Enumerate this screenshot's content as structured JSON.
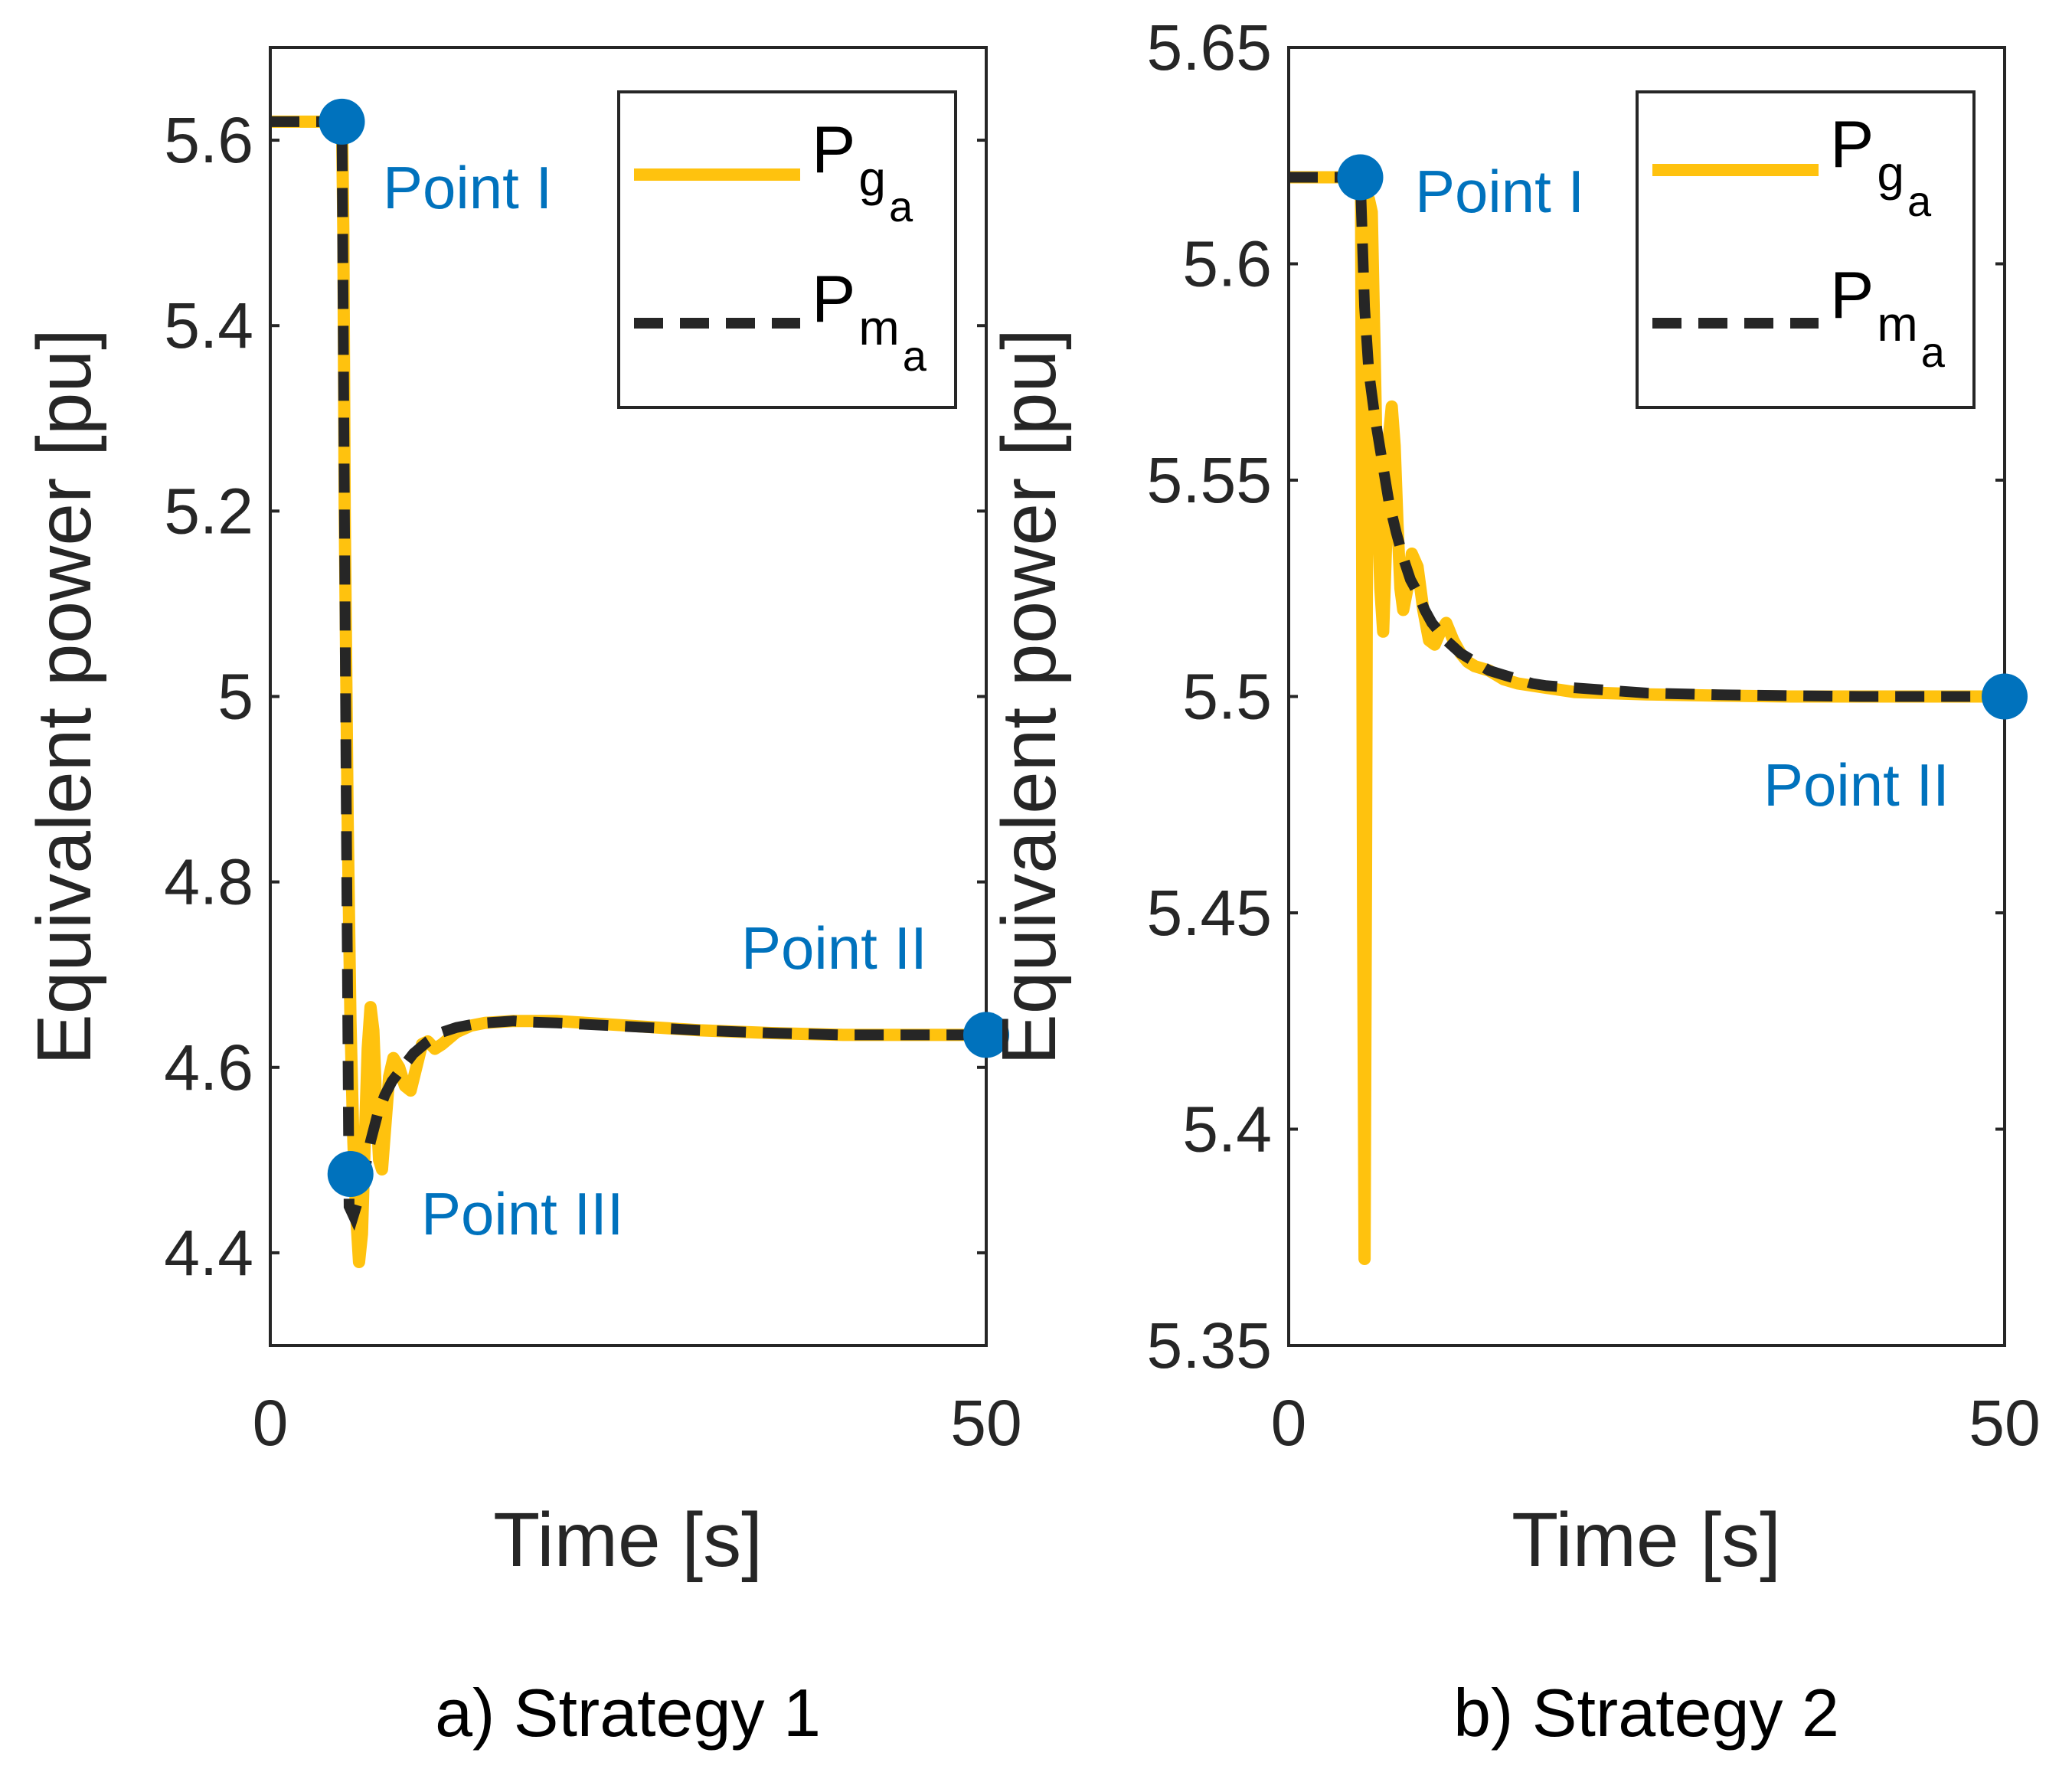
{
  "chart_data": [
    {
      "type": "line",
      "caption": "a) Strategy 1",
      "xlabel": "Time [s]",
      "ylabel": "Equivalent power [pu]",
      "xlim": [
        0,
        50
      ],
      "ylim": [
        4.3,
        5.7
      ],
      "xticks": [
        0,
        50
      ],
      "xtick_labels": [
        "0",
        "50"
      ],
      "yticks": [
        4.4,
        4.6,
        4.8,
        5.0,
        5.2,
        5.4,
        5.6
      ],
      "ytick_labels": [
        "4.4",
        "4.6",
        "4.8",
        "5",
        "5.2",
        "5.4",
        "5.6"
      ],
      "legend_position": "top-right",
      "series": [
        {
          "name": "Pg_a",
          "label_main": "P",
          "label_sub": "g",
          "label_subsub": "a",
          "color": "#FFC20E",
          "style": "solid",
          "x": [
            0,
            5,
            5.02,
            5.1,
            5.2,
            5.4,
            5.6,
            5.8,
            6.0,
            6.2,
            6.4,
            6.6,
            6.8,
            7.0,
            7.2,
            7.4,
            7.6,
            7.8,
            8.0,
            8.3,
            8.6,
            9.0,
            9.4,
            9.8,
            10.2,
            10.6,
            11.0,
            11.5,
            12,
            13,
            14,
            15,
            17,
            20,
            25,
            30,
            35,
            40,
            45,
            50
          ],
          "y": [
            5.62,
            5.62,
            5.61,
            5.5,
            5.2,
            4.87,
            4.65,
            4.52,
            4.44,
            4.39,
            4.42,
            4.52,
            4.62,
            4.665,
            4.64,
            4.56,
            4.5,
            4.49,
            4.53,
            4.59,
            4.61,
            4.6,
            4.58,
            4.575,
            4.6,
            4.625,
            4.628,
            4.62,
            4.625,
            4.638,
            4.645,
            4.648,
            4.65,
            4.65,
            4.645,
            4.64,
            4.637,
            4.635,
            4.635,
            4.635
          ]
        },
        {
          "name": "Pm_a",
          "label_main": "P",
          "label_sub": "m",
          "label_subsub": "a",
          "color": "#262626",
          "style": "dashed",
          "x": [
            0,
            5,
            5.02,
            5.3,
            5.5,
            5.8,
            6.2,
            6.6,
            7.0,
            7.5,
            8.0,
            8.5,
            9.0,
            9.5,
            10,
            11,
            12,
            13,
            14,
            15,
            16,
            17,
            18,
            20,
            25,
            30,
            35,
            40,
            45,
            50
          ],
          "y": [
            5.62,
            5.62,
            5.58,
            4.9,
            4.45,
            4.44,
            4.46,
            4.49,
            4.52,
            4.55,
            4.57,
            4.585,
            4.595,
            4.605,
            4.615,
            4.628,
            4.638,
            4.643,
            4.646,
            4.648,
            4.649,
            4.65,
            4.649,
            4.648,
            4.644,
            4.64,
            4.637,
            4.635,
            4.635,
            4.635
          ]
        }
      ],
      "annotations": [
        {
          "text": "Point I",
          "x": 5,
          "y": 5.62
        },
        {
          "text": "Point III",
          "x": 5.6,
          "y": 4.485
        },
        {
          "text": "Point II",
          "x": 50,
          "y": 4.635
        }
      ]
    },
    {
      "type": "line",
      "caption": "b) Strategy 2",
      "xlabel": "Time [s]",
      "ylabel": "Equivalent power [pu]",
      "xlim": [
        0,
        50
      ],
      "ylim": [
        5.35,
        5.65
      ],
      "xticks": [
        0,
        50
      ],
      "xtick_labels": [
        "0",
        "50"
      ],
      "yticks": [
        5.35,
        5.4,
        5.45,
        5.5,
        5.55,
        5.6,
        5.65
      ],
      "ytick_labels": [
        "5.35",
        "5.4",
        "5.45",
        "5.5",
        "5.55",
        "5.6",
        "5.65"
      ],
      "legend_position": "top-right",
      "series": [
        {
          "name": "Pg_a",
          "label_main": "P",
          "label_sub": "g",
          "label_subsub": "a",
          "color": "#FFC20E",
          "style": "solid",
          "x": [
            0,
            5,
            5.05,
            5.1,
            5.2,
            5.3,
            5.4,
            5.5,
            5.6,
            5.8,
            6.0,
            6.2,
            6.4,
            6.6,
            6.8,
            7.0,
            7.2,
            7.4,
            7.6,
            7.8,
            8.0,
            8.3,
            8.6,
            9.0,
            9.4,
            9.8,
            10.2,
            10.6,
            11,
            11.5,
            12,
            12.5,
            13,
            14,
            15,
            16,
            18,
            20,
            25,
            30,
            35,
            40,
            45,
            50
          ],
          "y": [
            5.62,
            5.62,
            5.62,
            5.57,
            5.45,
            5.37,
            5.46,
            5.57,
            5.615,
            5.612,
            5.58,
            5.545,
            5.525,
            5.515,
            5.535,
            5.56,
            5.567,
            5.558,
            5.54,
            5.525,
            5.52,
            5.525,
            5.533,
            5.53,
            5.52,
            5.513,
            5.512,
            5.515,
            5.517,
            5.513,
            5.51,
            5.508,
            5.507,
            5.506,
            5.504,
            5.503,
            5.502,
            5.501,
            5.5005,
            5.5002,
            5.5,
            5.5,
            5.5,
            5.5
          ]
        },
        {
          "name": "Pm_a",
          "label_main": "P",
          "label_sub": "m",
          "label_subsub": "a",
          "color": "#262626",
          "style": "dashed",
          "x": [
            0,
            5,
            5.1,
            5.3,
            5.6,
            6.0,
            6.5,
            7.0,
            7.5,
            8.0,
            8.5,
            9,
            9.5,
            10,
            11,
            12,
            13,
            14,
            15,
            16,
            17,
            18,
            20,
            25,
            30,
            35,
            40,
            45,
            50
          ],
          "y": [
            5.62,
            5.62,
            5.61,
            5.59,
            5.575,
            5.565,
            5.555,
            5.545,
            5.538,
            5.532,
            5.527,
            5.524,
            5.52,
            5.517,
            5.513,
            5.51,
            5.508,
            5.506,
            5.505,
            5.504,
            5.503,
            5.5025,
            5.502,
            5.5008,
            5.5004,
            5.5002,
            5.5,
            5.5,
            5.5
          ]
        }
      ],
      "annotations": [
        {
          "text": "Point I",
          "x": 5,
          "y": 5.62
        },
        {
          "text": "Point II",
          "x": 50,
          "y": 5.5
        }
      ]
    }
  ],
  "colors": {
    "marker": "#0072BD",
    "annotation_text": "#0072BD",
    "axis": "#262626"
  }
}
